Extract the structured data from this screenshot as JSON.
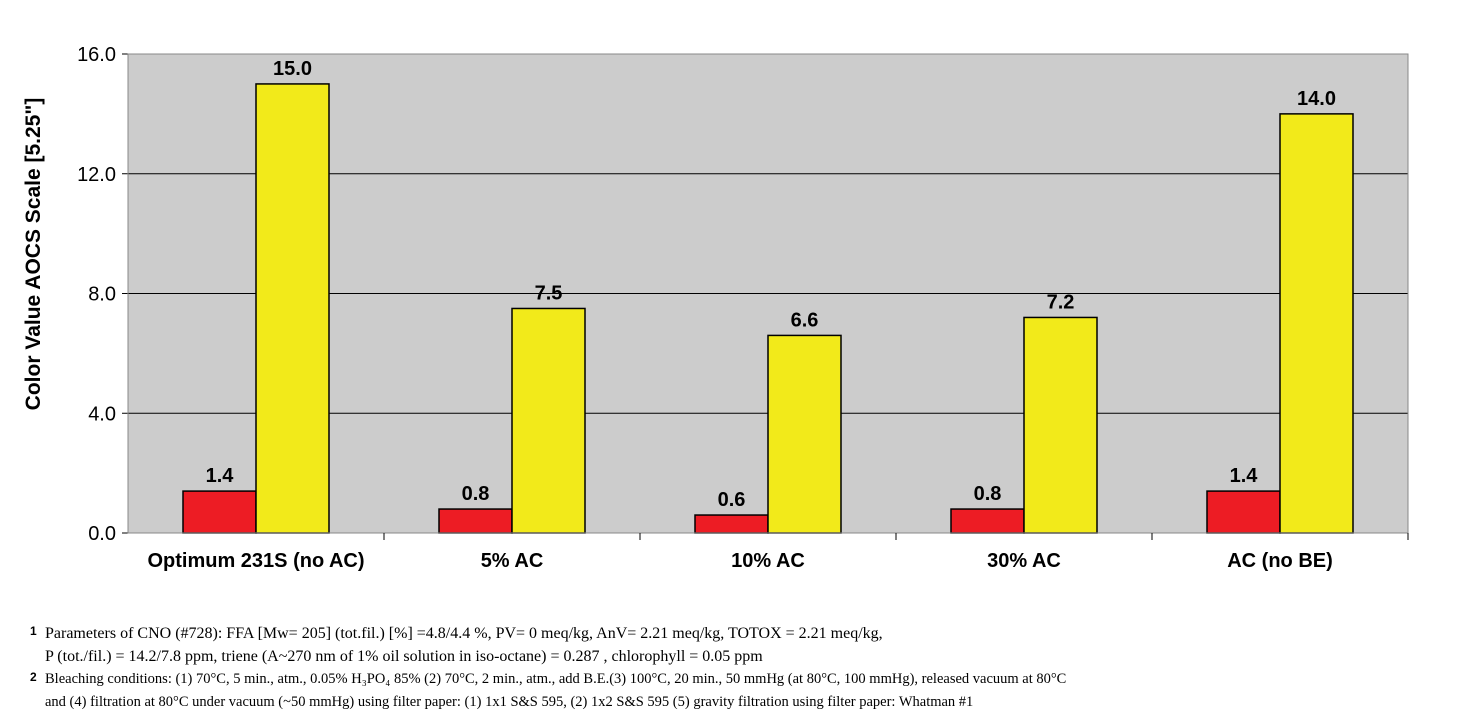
{
  "chart_data": {
    "type": "bar",
    "categories": [
      "Optimum 231S (no AC)",
      "5% AC",
      "10% AC",
      "30% AC",
      "AC (no BE)"
    ],
    "series": [
      {
        "values": [
          1.4,
          0.8,
          0.6,
          0.8,
          1.4
        ],
        "color": "#ed1c24"
      },
      {
        "values": [
          15.0,
          7.5,
          6.6,
          7.2,
          14.0
        ],
        "color": "#f2ea1a"
      }
    ],
    "data_labels": [
      [
        "1.4",
        "0.8",
        "0.6",
        "0.8",
        "1.4"
      ],
      [
        "15.0",
        "7.5",
        "6.6",
        "7.2",
        "14.0"
      ]
    ],
    "ylabel": "Color Value AOCS Scale [5.25\"]",
    "xlabel": "",
    "ylim": [
      0,
      16
    ],
    "yticks": [
      "0.0",
      "4.0",
      "8.0",
      "12.0",
      "16.0"
    ],
    "ytick_values": [
      0,
      4,
      8,
      12,
      16
    ],
    "grid": true,
    "plot_background": "#cccccc",
    "legend": "none"
  },
  "footnotes": [
    {
      "marker": "1",
      "lines": [
        "Parameters of CNO (#728): FFA [Mw= 205] (tot.fil.) [%] =4.8/4.4 %, PV= 0 meq/kg, AnV= 2.21 meq/kg, TOTOX = 2.21 meq/kg,",
        "P (tot./fil.) = 14.2/7.8 ppm, triene (A~270 nm of 1% oil solution in iso-octane) = 0.287 , chlorophyll = 0.05 ppm"
      ]
    },
    {
      "marker": "2",
      "lines": [
        "Bleaching conditions: (1) 70°C, 5 min., atm., 0.05% H₃PO₄ 85% (2) 70°C, 2 min., atm., add B.E.(3) 100°C, 20 min., 50 mmHg (at 80°C, 100 mmHg), released vacuum at 80°C",
        "and (4) filtration at 80°C under vacuum (~50 mmHg) using filter paper: (1) 1x1 S&S 595, (2) 1x2 S&S 595 (5) gravity filtration using filter paper: Whatman #1"
      ]
    }
  ]
}
